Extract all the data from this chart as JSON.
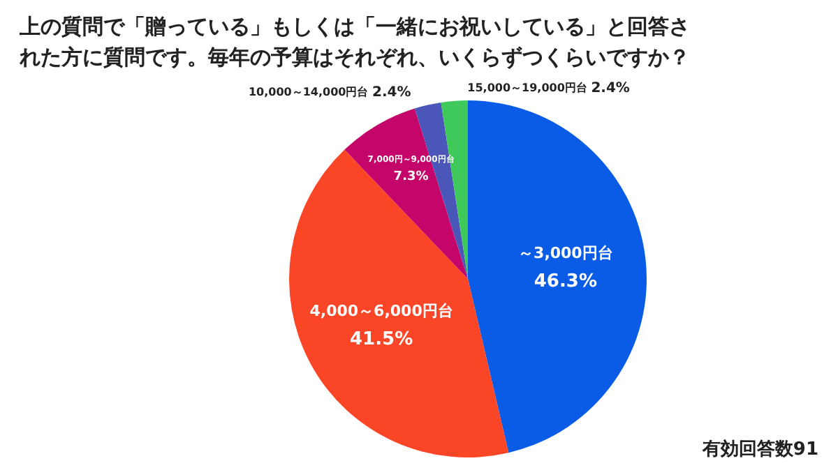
{
  "chart_data": {
    "type": "pie",
    "title": "上の質問で「贈っている」もしくは「一緒にお祝いしている」と回答された方に質問です。毎年の予算はそれぞれ、いくらずつくらいですか？",
    "categories": [
      "～3,000円台",
      "4,000～6,000円台",
      "7,000円～9,000円台",
      "10,000～14,000円台",
      "15,000～19,000円台"
    ],
    "values": [
      46.3,
      41.5,
      7.3,
      2.4,
      2.4
    ],
    "colors": [
      "#0a5ce6",
      "#fb4527",
      "#c4066a",
      "#4a56b8",
      "#3ec95a"
    ],
    "value_labels": [
      "46.3%",
      "41.5%",
      "7.3%",
      "2.4%",
      "2.4%"
    ],
    "annotations": [
      "有効回答数91"
    ]
  }
}
